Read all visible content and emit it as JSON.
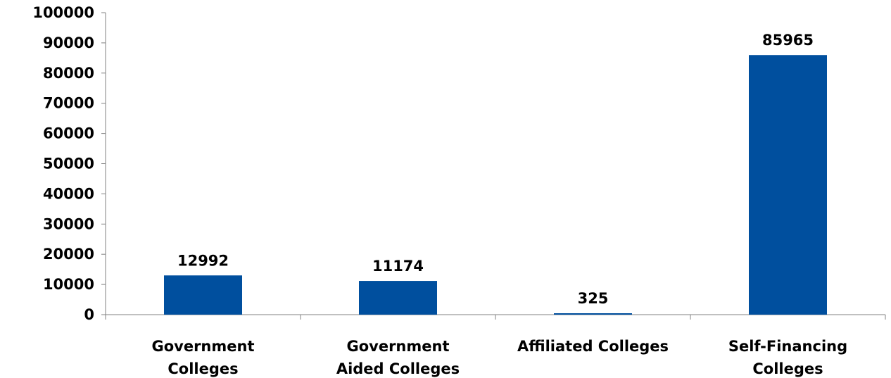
{
  "chart_data": {
    "type": "bar",
    "title": "",
    "xlabel": "",
    "ylabel": "",
    "categories": [
      [
        "Government",
        "Colleges"
      ],
      [
        "Government",
        "Aided Colleges"
      ],
      [
        "Affiliated Colleges"
      ],
      [
        "Self-Financing",
        "Colleges"
      ]
    ],
    "values": [
      12992,
      11174,
      325,
      85965
    ],
    "data_labels": [
      "12992",
      "11174",
      "325",
      "85965"
    ],
    "ylim": [
      0,
      100000
    ],
    "yticks": [
      "0",
      "10000",
      "20000",
      "30000",
      "40000",
      "50000",
      "60000",
      "70000",
      "80000",
      "90000",
      "100000"
    ],
    "grid": false,
    "legend": "none",
    "bar_color": "#004f9e",
    "axis_color": "#808080"
  }
}
